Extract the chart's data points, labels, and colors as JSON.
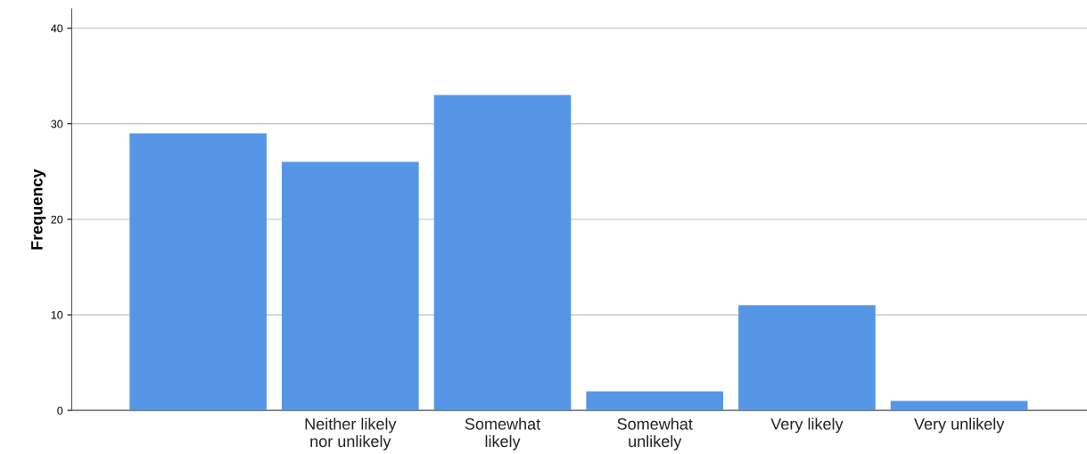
{
  "chart_data": {
    "type": "bar",
    "ylabel": "Frequency",
    "categories": [
      null,
      "Neither likely\nnor unlikely",
      "Somewhat\nlikely",
      "Somewhat\nunlikely",
      "Very likely",
      "Very unlikely"
    ],
    "values": [
      29,
      26,
      33,
      2,
      11,
      1
    ],
    "color": "#5596e6",
    "ylim": [
      0,
      42
    ],
    "yticks": [
      0,
      10,
      20,
      30,
      40
    ],
    "grid": "y"
  }
}
